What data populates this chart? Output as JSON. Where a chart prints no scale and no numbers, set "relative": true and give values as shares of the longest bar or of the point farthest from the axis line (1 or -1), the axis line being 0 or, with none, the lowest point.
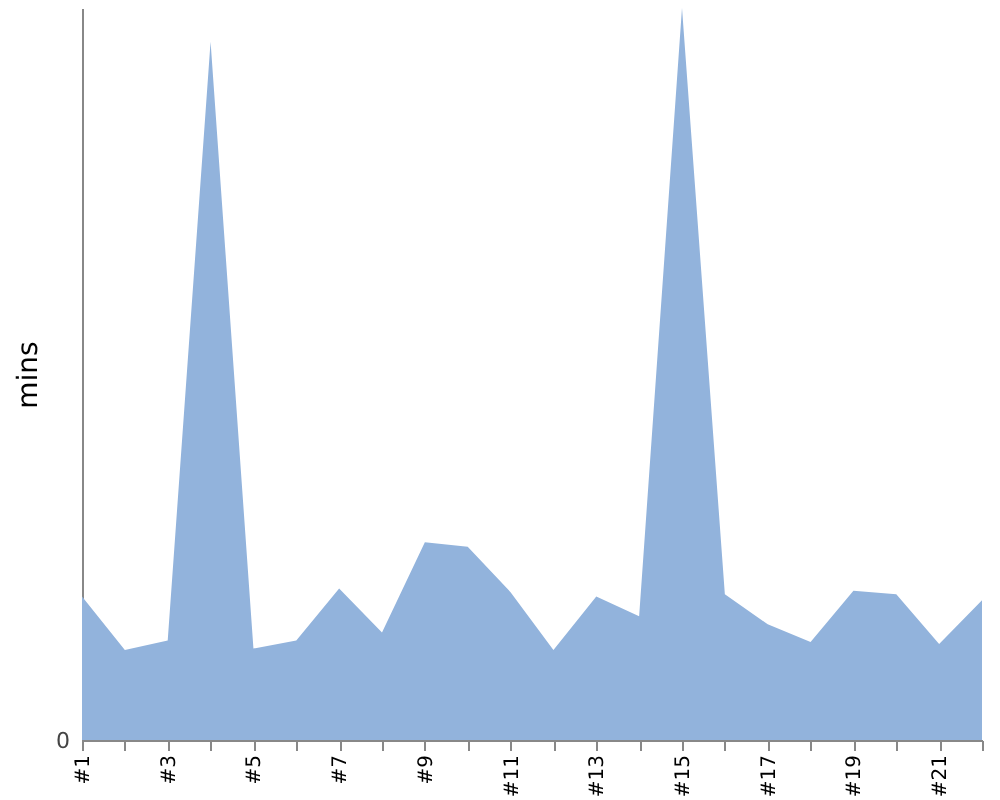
{
  "chart_data": {
    "type": "area",
    "relative": true,
    "ylabel": "mins",
    "annotations": [
      "0"
    ],
    "grid": false,
    "categories": [
      "#1",
      null,
      "#3",
      null,
      "#5",
      null,
      "#7",
      null,
      "#9",
      null,
      "#11",
      null,
      "#13",
      null,
      "#15",
      null,
      "#17",
      null,
      "#19",
      null,
      "#21",
      null
    ],
    "series": [
      {
        "color": "#92b3dc",
        "values": [
          0.196,
          0.123,
          0.136,
          0.954,
          0.125,
          0.136,
          0.207,
          0.147,
          0.27,
          0.264,
          0.202,
          0.123,
          0.196,
          0.169,
          1,
          0.199,
          0.158,
          0.134,
          0.204,
          0.199,
          0.131,
          0.191
        ]
      }
    ]
  }
}
